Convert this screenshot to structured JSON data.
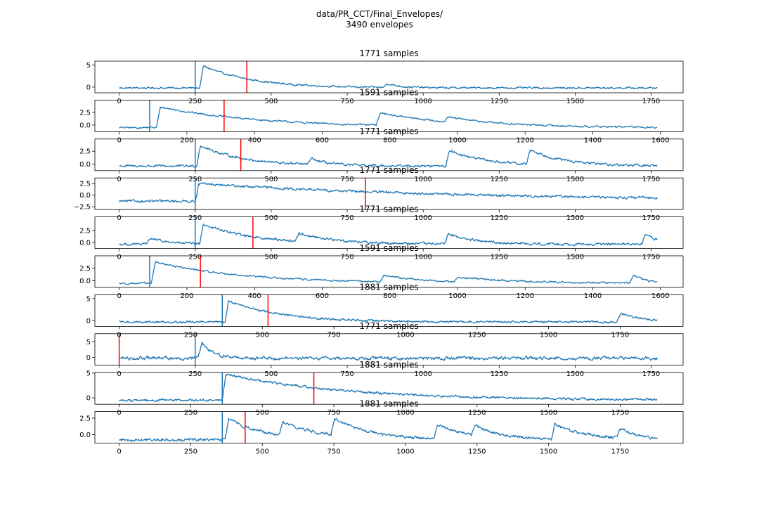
{
  "figure": {
    "suptitle_line1": "data/PR_CCT/Final_Envelopes/",
    "suptitle_line2": "3490 envelopes"
  },
  "colors": {
    "trace": "#1f77b4",
    "marker": "#ff0000",
    "axes": "#000000"
  },
  "chart_data": [
    {
      "type": "line",
      "title": "1771 samples",
      "n": 1771,
      "xlim": [
        -80,
        1855
      ],
      "ylim": [
        -1.3,
        5.9
      ],
      "xticks": [
        0,
        250,
        500,
        750,
        1000,
        1250,
        1500,
        1750
      ],
      "yticks": [
        0,
        5
      ],
      "ytick_labels": [
        "0",
        "5"
      ],
      "onset": 250,
      "marker": 420,
      "shape": {
        "baseline": -0.2,
        "noise": 0.35,
        "events": [
          {
            "x": 265,
            "amp": 5.4,
            "decay": 160
          },
          {
            "x": 870,
            "amp": 1.2,
            "decay": 40
          }
        ]
      }
    },
    {
      "type": "line",
      "title": "1591 samples",
      "n": 1591,
      "xlim": [
        -72,
        1667
      ],
      "ylim": [
        -1.3,
        4.9
      ],
      "xticks": [
        0,
        200,
        400,
        600,
        800,
        1000,
        1200,
        1400,
        1600
      ],
      "yticks": [
        0,
        2.5
      ],
      "ytick_labels": [
        "0.0",
        "2.5"
      ],
      "onset": 90,
      "marker": 310,
      "shape": {
        "baseline": -0.5,
        "noise": 0.3,
        "events": [
          {
            "x": 110,
            "amp": 4.2,
            "decay": 300
          },
          {
            "x": 760,
            "amp": 2.6,
            "decay": 200
          },
          {
            "x": 960,
            "amp": 1.0,
            "decay": 150
          }
        ]
      }
    },
    {
      "type": "line",
      "title": "1771 samples",
      "n": 1771,
      "xlim": [
        -80,
        1855
      ],
      "ylim": [
        -1.3,
        4.9
      ],
      "xticks": [
        0,
        250,
        500,
        750,
        1000,
        1250,
        1500,
        1750
      ],
      "yticks": [
        0,
        2.5
      ],
      "ytick_labels": [
        "0.0",
        "2.5"
      ],
      "onset": 250,
      "marker": 400,
      "shape": {
        "baseline": -0.4,
        "noise": 0.4,
        "events": [
          {
            "x": 255,
            "amp": 4.4,
            "decay": 140
          },
          {
            "x": 620,
            "amp": 1.5,
            "decay": 50
          },
          {
            "x": 1075,
            "amp": 3.4,
            "decay": 120
          },
          {
            "x": 1340,
            "amp": 3.2,
            "decay": 110
          }
        ]
      }
    },
    {
      "type": "line",
      "title": "1771 samples",
      "n": 1771,
      "xlim": [
        -80,
        1855
      ],
      "ylim": [
        -3.1,
        3.7
      ],
      "xticks": [
        0,
        250,
        500,
        750,
        1000,
        1250,
        1500,
        1750
      ],
      "yticks": [
        -2.5,
        0,
        2.5
      ],
      "ytick_labels": [
        "−2.5",
        "0.0",
        "2.5"
      ],
      "onset": 250,
      "marker": 810,
      "shape": {
        "baseline": -1.3,
        "noise": 0.45,
        "events": [
          {
            "x": 250,
            "amp": 3.8,
            "decay": 900
          }
        ]
      }
    },
    {
      "type": "line",
      "title": "1771 samples",
      "n": 1771,
      "xlim": [
        -80,
        1855
      ],
      "ylim": [
        -1.3,
        5.4
      ],
      "xticks": [
        0,
        250,
        500,
        750,
        1000,
        1250,
        1500,
        1750
      ],
      "yticks": [
        0,
        2.5
      ],
      "ytick_labels": [
        "0.0",
        "2.5"
      ],
      "onset": 250,
      "marker": 440,
      "shape": {
        "baseline": -0.4,
        "noise": 0.45,
        "events": [
          {
            "x": 90,
            "amp": 1.6,
            "decay": 60
          },
          {
            "x": 265,
            "amp": 4.5,
            "decay": 170
          },
          {
            "x": 580,
            "amp": 1.8,
            "decay": 120
          },
          {
            "x": 1070,
            "amp": 2.4,
            "decay": 90
          },
          {
            "x": 1720,
            "amp": 2.6,
            "decay": 50
          }
        ]
      }
    },
    {
      "type": "line",
      "title": "1591 samples",
      "n": 1591,
      "xlim": [
        -72,
        1667
      ],
      "ylim": [
        -1.3,
        4.9
      ],
      "xticks": [
        0,
        200,
        400,
        600,
        800,
        1000,
        1200,
        1400,
        1600
      ],
      "yticks": [
        0,
        2.5
      ],
      "ytick_labels": [
        "0.0",
        "2.5"
      ],
      "onset": 90,
      "marker": 240,
      "shape": {
        "baseline": -0.5,
        "noise": 0.3,
        "events": [
          {
            "x": 95,
            "amp": 4.4,
            "decay": 260
          },
          {
            "x": 770,
            "amp": 1.4,
            "decay": 120
          },
          {
            "x": 990,
            "amp": 0.9,
            "decay": 200
          },
          {
            "x": 1510,
            "amp": 2.0,
            "decay": 40
          }
        ]
      }
    },
    {
      "type": "line",
      "title": "1881 samples",
      "n": 1881,
      "xlim": [
        -85,
        1970
      ],
      "ylim": [
        -1.3,
        5.9
      ],
      "xticks": [
        0,
        250,
        500,
        750,
        1000,
        1250,
        1500,
        1750
      ],
      "yticks": [
        0,
        5
      ],
      "ytick_labels": [
        "0",
        "5"
      ],
      "onset": 360,
      "marker": 520,
      "shape": {
        "baseline": -0.3,
        "noise": 0.4,
        "events": [
          {
            "x": 370,
            "amp": 5.2,
            "decay": 180
          },
          {
            "x": 1740,
            "amp": 2.2,
            "decay": 80
          }
        ]
      }
    },
    {
      "type": "line",
      "title": "1771 samples",
      "n": 1771,
      "xlim": [
        -80,
        1855
      ],
      "ylim": [
        -2.6,
        7.6
      ],
      "xticks": [
        0,
        250,
        500,
        750,
        1000,
        1250,
        1500,
        1750
      ],
      "yticks": [
        0,
        5
      ],
      "ytick_labels": [
        "0",
        "5"
      ],
      "onset": 250,
      "marker": 0,
      "shape": {
        "baseline": -0.3,
        "noise": 0.9,
        "events": [
          {
            "x": 260,
            "amp": 6.2,
            "decay": 40
          }
        ]
      }
    },
    {
      "type": "line",
      "title": "1881 samples",
      "n": 1881,
      "xlim": [
        -85,
        1970
      ],
      "ylim": [
        -1.3,
        5.1
      ],
      "xticks": [
        0,
        250,
        500,
        750,
        1000,
        1250,
        1500,
        1750
      ],
      "yticks": [
        0,
        5
      ],
      "ytick_labels": [
        "0",
        "5"
      ],
      "onset": 360,
      "marker": 680,
      "shape": {
        "baseline": -0.5,
        "noise": 0.4,
        "events": [
          {
            "x": 360,
            "amp": 5.4,
            "decay": 420
          }
        ]
      }
    },
    {
      "type": "line",
      "title": "1881 samples",
      "n": 1881,
      "xlim": [
        -85,
        1970
      ],
      "ylim": [
        -1.3,
        3.5
      ],
      "xticks": [
        0,
        250,
        500,
        750,
        1000,
        1250,
        1500,
        1750
      ],
      "yticks": [
        0,
        2.5
      ],
      "ytick_labels": [
        "0.0",
        "2.5"
      ],
      "onset": 360,
      "marker": 440,
      "shape": {
        "baseline": -0.8,
        "noise": 0.35,
        "events": [
          {
            "x": 370,
            "amp": 3.6,
            "decay": 120
          },
          {
            "x": 560,
            "amp": 2.2,
            "decay": 150
          },
          {
            "x": 740,
            "amp": 2.8,
            "decay": 120
          },
          {
            "x": 1100,
            "amp": 2.3,
            "decay": 110
          },
          {
            "x": 1230,
            "amp": 1.7,
            "decay": 90
          },
          {
            "x": 1510,
            "amp": 2.5,
            "decay": 110
          },
          {
            "x": 1740,
            "amp": 1.8,
            "decay": 60
          }
        ]
      }
    }
  ]
}
